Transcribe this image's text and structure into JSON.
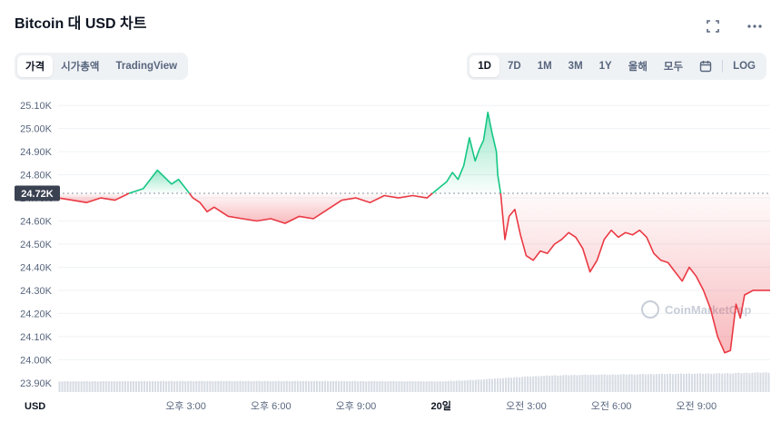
{
  "header": {
    "title": "Bitcoin 대 USD 차트"
  },
  "tabs_left": [
    {
      "label": "가격",
      "active": true
    },
    {
      "label": "시가총액",
      "active": false
    },
    {
      "label": "TradingView",
      "active": false
    }
  ],
  "tabs_right": [
    {
      "label": "1D",
      "active": true
    },
    {
      "label": "7D",
      "active": false
    },
    {
      "label": "1M",
      "active": false
    },
    {
      "label": "3M",
      "active": false
    },
    {
      "label": "1Y",
      "active": false
    },
    {
      "label": "올해",
      "active": false
    },
    {
      "label": "모두",
      "active": false
    },
    {
      "label": "LOG",
      "active": false
    }
  ],
  "icons": {
    "fullscreen": "fullscreen-icon",
    "more": "more-icon",
    "calendar": "calendar-icon"
  },
  "watermark": "CoinMarketCap",
  "chart_data": {
    "type": "area",
    "title": "Bitcoin 대 USD 차트",
    "unit_label": "USD",
    "reference_value": 24.72,
    "reference_label": "24.72K",
    "ylim": [
      23.86,
      25.14
    ],
    "y_ticks": [
      "25.10K",
      "25.00K",
      "24.90K",
      "24.80K",
      "24.70K",
      "24.60K",
      "24.50K",
      "24.40K",
      "24.30K",
      "24.20K",
      "24.10K",
      "24.00K",
      "23.90K"
    ],
    "y_tick_values": [
      25.1,
      25.0,
      24.9,
      24.8,
      24.7,
      24.6,
      24.5,
      24.4,
      24.3,
      24.2,
      24.1,
      24.0,
      23.9
    ],
    "xlim": [
      10.5,
      35.6
    ],
    "x_ticks": [
      {
        "label": "오후 3:00",
        "value": 15,
        "bold": false
      },
      {
        "label": "오후 6:00",
        "value": 18,
        "bold": false
      },
      {
        "label": "오후 9:00",
        "value": 21,
        "bold": false
      },
      {
        "label": "20일",
        "value": 24,
        "bold": true
      },
      {
        "label": "오전 3:00",
        "value": 27,
        "bold": false
      },
      {
        "label": "오전 6:00",
        "value": 30,
        "bold": false
      },
      {
        "label": "오전 9:00",
        "value": 33,
        "bold": false
      }
    ],
    "colors": {
      "up": "#16c784",
      "down": "#ea3943",
      "volume": "#d7dce4",
      "grid": "#eff2f5"
    },
    "price": {
      "x": [
        10.5,
        11.0,
        11.5,
        12.0,
        12.5,
        13.0,
        13.5,
        14.0,
        14.5,
        14.75,
        15.0,
        15.25,
        15.5,
        15.75,
        16.0,
        16.5,
        17.0,
        17.5,
        18.0,
        18.5,
        19.0,
        19.5,
        20.0,
        20.5,
        21.0,
        21.5,
        22.0,
        22.5,
        23.0,
        23.5,
        24.0,
        24.2,
        24.4,
        24.6,
        24.8,
        25.0,
        25.2,
        25.35,
        25.5,
        25.65,
        25.8,
        25.95,
        26.0,
        26.1,
        26.25,
        26.4,
        26.6,
        26.8,
        27.0,
        27.25,
        27.5,
        27.75,
        28.0,
        28.25,
        28.5,
        28.75,
        29.0,
        29.25,
        29.5,
        29.75,
        30.0,
        30.25,
        30.5,
        30.75,
        31.0,
        31.25,
        31.5,
        31.75,
        32.0,
        32.25,
        32.5,
        32.75,
        33.0,
        33.25,
        33.5,
        33.75,
        34.0,
        34.2,
        34.4,
        34.55,
        34.7,
        34.85,
        35.0,
        35.2,
        35.4,
        35.6
      ],
      "y": [
        24.7,
        24.69,
        24.68,
        24.7,
        24.69,
        24.72,
        24.74,
        24.82,
        24.76,
        24.78,
        24.74,
        24.7,
        24.68,
        24.64,
        24.66,
        24.62,
        24.61,
        24.6,
        24.61,
        24.59,
        24.62,
        24.61,
        24.65,
        24.69,
        24.7,
        24.68,
        24.71,
        24.7,
        24.71,
        24.7,
        24.75,
        24.77,
        24.81,
        24.78,
        24.84,
        24.96,
        24.86,
        24.91,
        24.95,
        25.07,
        24.98,
        24.9,
        24.8,
        24.72,
        24.52,
        24.62,
        24.65,
        24.54,
        24.45,
        24.43,
        24.47,
        24.46,
        24.5,
        24.52,
        24.55,
        24.53,
        24.48,
        24.38,
        24.43,
        24.52,
        24.56,
        24.53,
        24.55,
        24.54,
        24.56,
        24.53,
        24.46,
        24.43,
        24.42,
        24.38,
        24.34,
        24.4,
        24.36,
        24.3,
        24.22,
        24.1,
        24.03,
        24.04,
        24.24,
        24.18,
        24.28,
        24.29,
        24.3,
        24.3,
        24.3,
        24.3
      ]
    },
    "volume": {
      "x": [
        10.5,
        15.0,
        20.0,
        24.0,
        25.0,
        26.0,
        27.0,
        28.0,
        29.0,
        30.0,
        31.0,
        32.0,
        33.0,
        34.0,
        35.0,
        35.6
      ],
      "relative_height": [
        0.36,
        0.37,
        0.37,
        0.36,
        0.4,
        0.46,
        0.52,
        0.56,
        0.58,
        0.59,
        0.6,
        0.61,
        0.62,
        0.63,
        0.65,
        0.66
      ]
    }
  }
}
